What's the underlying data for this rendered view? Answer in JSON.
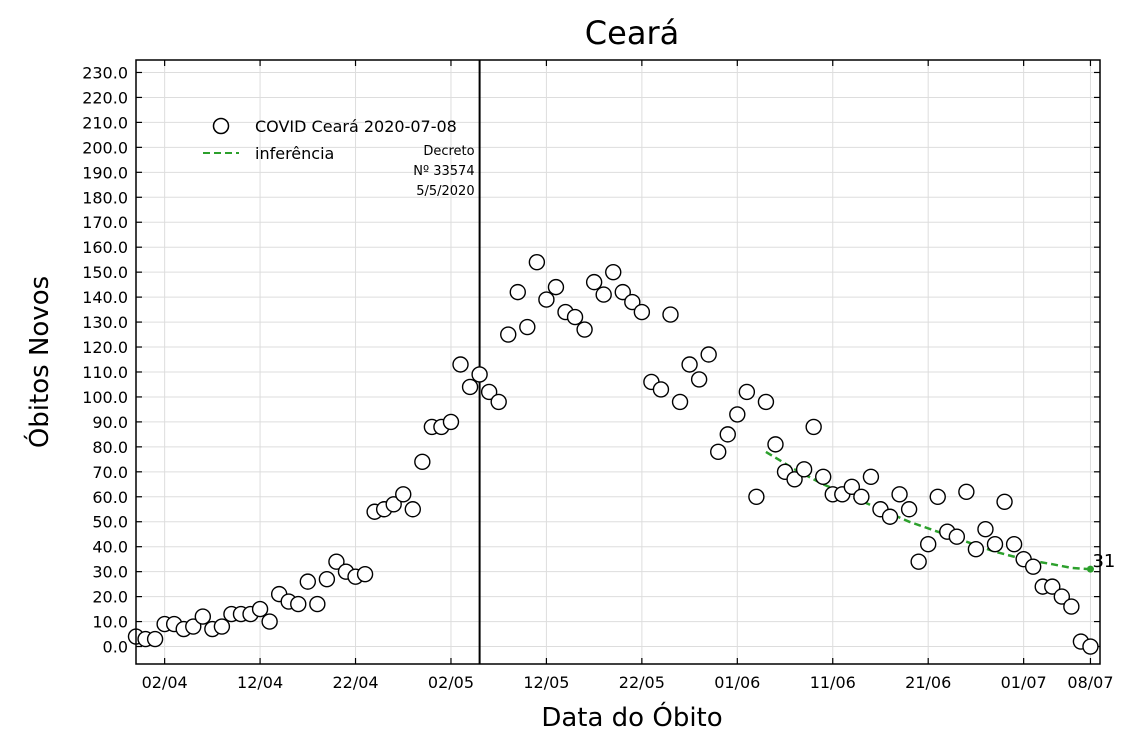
{
  "chart_data": {
    "type": "scatter",
    "title": "Ceará",
    "xlabel": "Data do Óbito",
    "ylabel": "Óbitos Novos",
    "x_start": "2020-03-30",
    "x_end": "2020-07-09",
    "ylim": [
      -7,
      235
    ],
    "y_ticks": [
      0,
      10,
      20,
      30,
      40,
      50,
      60,
      70,
      80,
      90,
      100,
      110,
      120,
      130,
      140,
      150,
      160,
      170,
      180,
      190,
      200,
      210,
      220,
      230
    ],
    "x_ticks": [
      {
        "date": "2020-04-02",
        "label": "02/04"
      },
      {
        "date": "2020-04-12",
        "label": "12/04"
      },
      {
        "date": "2020-04-22",
        "label": "22/04"
      },
      {
        "date": "2020-05-02",
        "label": "02/05"
      },
      {
        "date": "2020-05-12",
        "label": "12/05"
      },
      {
        "date": "2020-05-22",
        "label": "22/05"
      },
      {
        "date": "2020-06-01",
        "label": "01/06"
      },
      {
        "date": "2020-06-11",
        "label": "11/06"
      },
      {
        "date": "2020-06-21",
        "label": "21/06"
      },
      {
        "date": "2020-07-01",
        "label": "01/07"
      },
      {
        "date": "2020-07-08",
        "label": "08/07"
      }
    ],
    "grid": true,
    "legend_placement": "top-left",
    "series": [
      {
        "name": "COVID Ceará 2020-07-08",
        "marker": "open-circle",
        "points": [
          {
            "x": "2020-03-30",
            "y": 4
          },
          {
            "x": "2020-03-31",
            "y": 3
          },
          {
            "x": "2020-04-01",
            "y": 3
          },
          {
            "x": "2020-04-02",
            "y": 9
          },
          {
            "x": "2020-04-03",
            "y": 9
          },
          {
            "x": "2020-04-04",
            "y": 7
          },
          {
            "x": "2020-04-05",
            "y": 8
          },
          {
            "x": "2020-04-06",
            "y": 12
          },
          {
            "x": "2020-04-07",
            "y": 7
          },
          {
            "x": "2020-04-08",
            "y": 8
          },
          {
            "x": "2020-04-09",
            "y": 13
          },
          {
            "x": "2020-04-10",
            "y": 13
          },
          {
            "x": "2020-04-11",
            "y": 13
          },
          {
            "x": "2020-04-12",
            "y": 15
          },
          {
            "x": "2020-04-13",
            "y": 10
          },
          {
            "x": "2020-04-14",
            "y": 21
          },
          {
            "x": "2020-04-15",
            "y": 18
          },
          {
            "x": "2020-04-16",
            "y": 17
          },
          {
            "x": "2020-04-17",
            "y": 26
          },
          {
            "x": "2020-04-18",
            "y": 17
          },
          {
            "x": "2020-04-19",
            "y": 27
          },
          {
            "x": "2020-04-20",
            "y": 34
          },
          {
            "x": "2020-04-21",
            "y": 30
          },
          {
            "x": "2020-04-22",
            "y": 28
          },
          {
            "x": "2020-04-23",
            "y": 29
          },
          {
            "x": "2020-04-24",
            "y": 54
          },
          {
            "x": "2020-04-25",
            "y": 55
          },
          {
            "x": "2020-04-26",
            "y": 57
          },
          {
            "x": "2020-04-27",
            "y": 61
          },
          {
            "x": "2020-04-28",
            "y": 55
          },
          {
            "x": "2020-04-29",
            "y": 74
          },
          {
            "x": "2020-04-30",
            "y": 88
          },
          {
            "x": "2020-05-01",
            "y": 88
          },
          {
            "x": "2020-05-02",
            "y": 90
          },
          {
            "x": "2020-05-03",
            "y": 113
          },
          {
            "x": "2020-05-04",
            "y": 104
          },
          {
            "x": "2020-05-05",
            "y": 109
          },
          {
            "x": "2020-05-06",
            "y": 102
          },
          {
            "x": "2020-05-07",
            "y": 98
          },
          {
            "x": "2020-05-08",
            "y": 125
          },
          {
            "x": "2020-05-09",
            "y": 142
          },
          {
            "x": "2020-05-10",
            "y": 128
          },
          {
            "x": "2020-05-11",
            "y": 154
          },
          {
            "x": "2020-05-12",
            "y": 139
          },
          {
            "x": "2020-05-13",
            "y": 144
          },
          {
            "x": "2020-05-14",
            "y": 134
          },
          {
            "x": "2020-05-15",
            "y": 132
          },
          {
            "x": "2020-05-16",
            "y": 127
          },
          {
            "x": "2020-05-17",
            "y": 146
          },
          {
            "x": "2020-05-18",
            "y": 141
          },
          {
            "x": "2020-05-19",
            "y": 150
          },
          {
            "x": "2020-05-20",
            "y": 142
          },
          {
            "x": "2020-05-21",
            "y": 138
          },
          {
            "x": "2020-05-22",
            "y": 134
          },
          {
            "x": "2020-05-23",
            "y": 106
          },
          {
            "x": "2020-05-24",
            "y": 103
          },
          {
            "x": "2020-05-25",
            "y": 133
          },
          {
            "x": "2020-05-26",
            "y": 98
          },
          {
            "x": "2020-05-27",
            "y": 113
          },
          {
            "x": "2020-05-28",
            "y": 107
          },
          {
            "x": "2020-05-29",
            "y": 117
          },
          {
            "x": "2020-05-30",
            "y": 78
          },
          {
            "x": "2020-05-31",
            "y": 85
          },
          {
            "x": "2020-06-01",
            "y": 93
          },
          {
            "x": "2020-06-02",
            "y": 102
          },
          {
            "x": "2020-06-03",
            "y": 60
          },
          {
            "x": "2020-06-04",
            "y": 98
          },
          {
            "x": "2020-06-05",
            "y": 81
          },
          {
            "x": "2020-06-06",
            "y": 70
          },
          {
            "x": "2020-06-07",
            "y": 67
          },
          {
            "x": "2020-06-08",
            "y": 71
          },
          {
            "x": "2020-06-09",
            "y": 88
          },
          {
            "x": "2020-06-10",
            "y": 68
          },
          {
            "x": "2020-06-11",
            "y": 61
          },
          {
            "x": "2020-06-12",
            "y": 61
          },
          {
            "x": "2020-06-13",
            "y": 64
          },
          {
            "x": "2020-06-14",
            "y": 60
          },
          {
            "x": "2020-06-15",
            "y": 68
          },
          {
            "x": "2020-06-16",
            "y": 55
          },
          {
            "x": "2020-06-17",
            "y": 52
          },
          {
            "x": "2020-06-18",
            "y": 61
          },
          {
            "x": "2020-06-19",
            "y": 55
          },
          {
            "x": "2020-06-20",
            "y": 34
          },
          {
            "x": "2020-06-21",
            "y": 41
          },
          {
            "x": "2020-06-22",
            "y": 60
          },
          {
            "x": "2020-06-23",
            "y": 46
          },
          {
            "x": "2020-06-24",
            "y": 44
          },
          {
            "x": "2020-06-25",
            "y": 62
          },
          {
            "x": "2020-06-26",
            "y": 39
          },
          {
            "x": "2020-06-27",
            "y": 47
          },
          {
            "x": "2020-06-28",
            "y": 41
          },
          {
            "x": "2020-06-29",
            "y": 58
          },
          {
            "x": "2020-06-30",
            "y": 41
          },
          {
            "x": "2020-07-01",
            "y": 35
          },
          {
            "x": "2020-07-02",
            "y": 32
          },
          {
            "x": "2020-07-03",
            "y": 24
          },
          {
            "x": "2020-07-04",
            "y": 24
          },
          {
            "x": "2020-07-05",
            "y": 20
          },
          {
            "x": "2020-07-06",
            "y": 16
          },
          {
            "x": "2020-07-07",
            "y": 2
          },
          {
            "x": "2020-07-08",
            "y": 0
          }
        ]
      },
      {
        "name": "inferência",
        "line_style": "dashed",
        "color": "#2ca02c",
        "points": [
          {
            "x": "2020-06-04",
            "y": 78
          },
          {
            "x": "2020-06-07",
            "y": 71
          },
          {
            "x": "2020-06-10",
            "y": 65
          },
          {
            "x": "2020-06-13",
            "y": 60
          },
          {
            "x": "2020-06-16",
            "y": 55
          },
          {
            "x": "2020-06-19",
            "y": 50
          },
          {
            "x": "2020-06-22",
            "y": 46
          },
          {
            "x": "2020-06-25",
            "y": 42
          },
          {
            "x": "2020-06-28",
            "y": 38
          },
          {
            "x": "2020-07-01",
            "y": 35
          },
          {
            "x": "2020-07-04",
            "y": 33
          },
          {
            "x": "2020-07-06",
            "y": 31.5
          },
          {
            "x": "2020-07-08",
            "y": 31
          }
        ],
        "end_label": "31"
      }
    ],
    "annotations": [
      {
        "type": "vline",
        "x": "2020-05-05",
        "label_lines": [
          "Decreto",
          "Nº 33574",
          "5/5/2020"
        ]
      }
    ]
  },
  "colors": {
    "marker_edge": "#000000",
    "marker_face": "#ffffff",
    "inference": "#2ca02c",
    "grid": "#dddddd"
  }
}
